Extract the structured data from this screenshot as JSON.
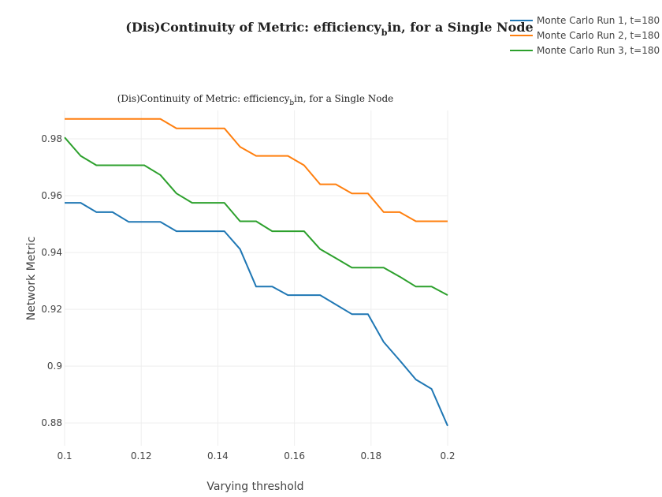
{
  "chart_data": {
    "type": "line",
    "title": "(Dis)Continuity of Metric: efficiency_bin, for a Single Node",
    "title_display": "(Dis)Continuity of Metric: efficiency",
    "title_sub": "b",
    "title_rest": "in, for a Single Node",
    "subtitle_display": "(Dis)Continuity of Metric: efficiency",
    "subtitle_sub": "b",
    "subtitle_rest": "in, for a Single Node",
    "xlabel": "Varying threshold",
    "ylabel": "Network Metric",
    "xlim": [
      0.1,
      0.2
    ],
    "ylim": [
      0.872,
      0.99
    ],
    "xticks": [
      0.1,
      0.12,
      0.14,
      0.16,
      0.18,
      0.2
    ],
    "xtick_labels": [
      "0.1",
      "0.12",
      "0.14",
      "0.16",
      "0.18",
      "0.2"
    ],
    "yticks": [
      0.88,
      0.9,
      0.92,
      0.94,
      0.96,
      0.98
    ],
    "ytick_labels": [
      "0.88",
      "0.9",
      "0.92",
      "0.94",
      "0.96",
      "0.98"
    ],
    "grid": true,
    "legend_position": "top-right",
    "x": [
      0.1,
      0.1042,
      0.1083,
      0.1125,
      0.1167,
      0.1208,
      0.125,
      0.1292,
      0.1333,
      0.1375,
      0.1417,
      0.1458,
      0.15,
      0.1542,
      0.1583,
      0.1625,
      0.1667,
      0.1708,
      0.175,
      0.1792,
      0.1833,
      0.1875,
      0.1917,
      0.1958,
      0.2
    ],
    "series": [
      {
        "name": "Monte Carlo Run 1, t=180",
        "color": "#1f77b4",
        "values": [
          0.9575,
          0.9575,
          0.9542,
          0.9542,
          0.9508,
          0.9508,
          0.9508,
          0.9475,
          0.9475,
          0.9475,
          0.9475,
          0.9412,
          0.928,
          0.928,
          0.925,
          0.925,
          0.925,
          0.9217,
          0.9183,
          0.9183,
          0.9085,
          0.902,
          0.8953,
          0.892,
          0.879
        ]
      },
      {
        "name": "Monte Carlo Run 2, t=180",
        "color": "#ff7f0e",
        "values": [
          0.987,
          0.987,
          0.987,
          0.987,
          0.987,
          0.987,
          0.987,
          0.9837,
          0.9837,
          0.9837,
          0.9837,
          0.9772,
          0.974,
          0.974,
          0.974,
          0.9707,
          0.964,
          0.964,
          0.9608,
          0.9608,
          0.9542,
          0.9542,
          0.951,
          0.951,
          0.951
        ]
      },
      {
        "name": "Monte Carlo Run 3, t=180",
        "color": "#2ca02c",
        "values": [
          0.9805,
          0.974,
          0.9707,
          0.9707,
          0.9707,
          0.9707,
          0.9673,
          0.9608,
          0.9575,
          0.9575,
          0.9575,
          0.951,
          0.951,
          0.9475,
          0.9475,
          0.9475,
          0.9412,
          0.938,
          0.9347,
          0.9347,
          0.9347,
          0.9315,
          0.928,
          0.928,
          0.925
        ]
      }
    ]
  }
}
